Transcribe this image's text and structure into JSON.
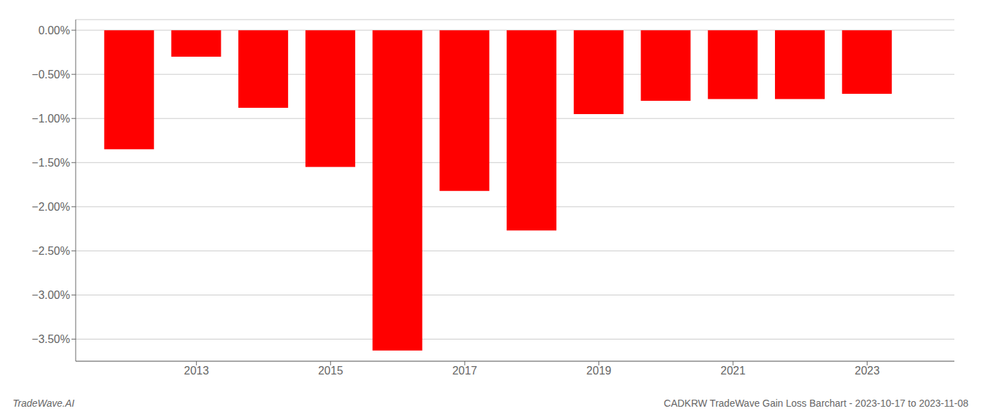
{
  "chart_data": {
    "type": "bar",
    "title": "CADKRW TradeWave Gain Loss Barchart - 2023-10-17 to 2023-11-08",
    "annotations": [
      "TradeWave.AI"
    ],
    "x": [
      2012,
      2013,
      2014,
      2015,
      2016,
      2017,
      2018,
      2019,
      2020,
      2021,
      2022,
      2023
    ],
    "values": [
      -1.35,
      -0.3,
      -0.88,
      -1.55,
      -3.63,
      -1.82,
      -2.27,
      -0.95,
      -0.8,
      -0.78,
      -0.78,
      -0.72
    ],
    "color": "#ff0000",
    "xlim": [
      2011.2,
      2024.3
    ],
    "xticks": [
      2013,
      2015,
      2017,
      2019,
      2021,
      2023
    ],
    "ylim": [
      -3.75,
      0.12
    ],
    "yticks": [
      {
        "value": 0.0,
        "label": "0.00%"
      },
      {
        "value": -0.5,
        "label": "−0.50%"
      },
      {
        "value": -1.0,
        "label": "−1.00%"
      },
      {
        "value": -1.5,
        "label": "−1.50%"
      },
      {
        "value": -2.0,
        "label": "−2.00%"
      },
      {
        "value": -2.5,
        "label": "−2.50%"
      },
      {
        "value": -3.0,
        "label": "−3.00%"
      },
      {
        "value": -3.5,
        "label": "−3.50%"
      }
    ],
    "grid": true
  }
}
